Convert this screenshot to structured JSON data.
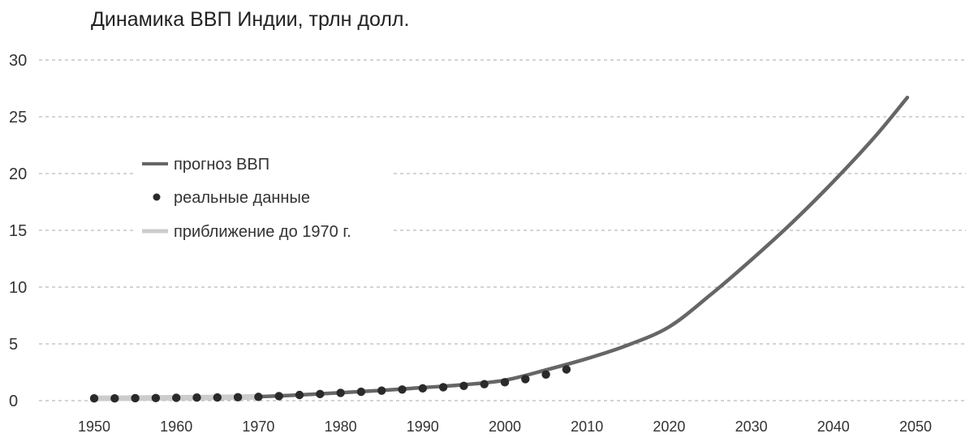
{
  "chart_data": {
    "type": "line",
    "title": "Динамика ВВП Индии, трлн долл.",
    "xlabel": "",
    "ylabel": "",
    "xlim": [
      1950,
      2050
    ],
    "ylim": [
      0,
      30
    ],
    "x_ticks": [
      1950,
      1960,
      1970,
      1980,
      1990,
      2000,
      2010,
      2020,
      2030,
      2040,
      2050
    ],
    "y_ticks": [
      0,
      5,
      10,
      15,
      20,
      25,
      30
    ],
    "grid": "horizontal-dashed",
    "legend_position": "upper-left",
    "colors": {
      "forecast": "#666666",
      "actual": "#2a2a2a",
      "approximation": "#cccccc",
      "grid": "#aaaaaa"
    },
    "series": [
      {
        "name": "прогноз ВВП",
        "style": "line",
        "x": [
          1970,
          1975,
          1980,
          1985,
          1990,
          1995,
          2000,
          2005,
          2010,
          2015,
          2020,
          2025,
          2030,
          2035,
          2040,
          2045,
          2049
        ],
        "y": [
          0.35,
          0.5,
          0.7,
          0.9,
          1.15,
          1.4,
          1.8,
          2.7,
          3.7,
          4.9,
          6.5,
          9.3,
          12.4,
          15.7,
          19.3,
          23.2,
          26.7
        ]
      },
      {
        "name": "реальные данные",
        "style": "dots",
        "x": [
          1950,
          1952.5,
          1955,
          1957.5,
          1960,
          1962.5,
          1965,
          1967.5,
          1970,
          1972.5,
          1975,
          1977.5,
          1980,
          1982.5,
          1985,
          1987.5,
          1990,
          1992.5,
          1995,
          1997.5,
          2000,
          2002.5,
          2005,
          2007.5
        ],
        "y": [
          0.2,
          0.2,
          0.22,
          0.23,
          0.25,
          0.27,
          0.28,
          0.3,
          0.33,
          0.4,
          0.5,
          0.58,
          0.68,
          0.78,
          0.88,
          0.98,
          1.08,
          1.18,
          1.3,
          1.45,
          1.62,
          1.9,
          2.3,
          2.75
        ]
      },
      {
        "name": "приближение до 1970 г.",
        "style": "line",
        "x": [
          1950,
          1955,
          1960,
          1965,
          1970
        ],
        "y": [
          0.2,
          0.22,
          0.25,
          0.28,
          0.33
        ]
      }
    ]
  }
}
